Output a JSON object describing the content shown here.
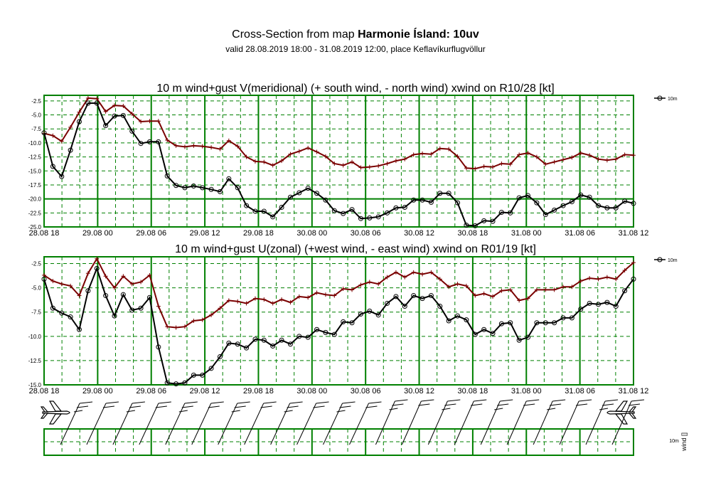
{
  "header": {
    "title_prefix": "Cross-Section from map ",
    "title_bold": "Harmonie Ísland: 10uv",
    "subtitle": "valid 28.08.2019 18:00 - 31.08.2019 12:00, place Keflavíkurflugvöllur"
  },
  "colors": {
    "wind": "#000000",
    "gust": "#7a0000",
    "grid": "#008000"
  },
  "legend": {
    "label": "10m"
  },
  "time_ticks": [
    "28.08 18",
    "29.08 00",
    "29.08 06",
    "29.08 12",
    "29.08 18",
    "30.08 00",
    "30.08 06",
    "30.08 12",
    "30.08 18",
    "31.08 00",
    "31.08 06",
    "31.08 12"
  ],
  "chart_data": [
    {
      "type": "line",
      "title": "10 m wind+gust V(meridional) (+ south wind, - north wind) xwind on R10/28 [kt]",
      "ylim": [
        -25,
        -1.5
      ],
      "yticks": [
        -2.5,
        -5.0,
        -7.5,
        -10.0,
        -12.5,
        -15.0,
        -17.5,
        -20.0,
        -22.5,
        -25.0
      ],
      "ytick_labels": [
        "-2.5",
        "-5.0",
        "-7.5",
        "-10.0",
        "-12.5",
        "-15.0",
        "-17.5",
        "-20.0",
        "-22.5",
        "-25.0"
      ],
      "series": [
        {
          "name": "10m",
          "values": [
            -8.2,
            -14.2,
            -16.0,
            -11.3,
            -6.2,
            -2.9,
            -2.9,
            -6.9,
            -5.2,
            -5.1,
            -7.9,
            -10.1,
            -9.8,
            -9.8,
            -15.9,
            -17.6,
            -18.0,
            -17.7,
            -18.0,
            -18.3,
            -18.7,
            -16.4,
            -18.0,
            -21.2,
            -22.2,
            -22.2,
            -23.2,
            -21.5,
            -19.7,
            -18.9,
            -18.1,
            -19.0,
            -20.2,
            -22.1,
            -22.6,
            -21.9,
            -23.5,
            -23.4,
            -23.2,
            -22.5,
            -21.6,
            -21.5,
            -20.2,
            -20.2,
            -20.6,
            -19.0,
            -19.0,
            -20.7,
            -24.7,
            -24.8,
            -23.9,
            -24.0,
            -22.4,
            -22.5,
            -19.8,
            -19.4,
            -20.7,
            -22.8,
            -22.0,
            -21.2,
            -20.5,
            -19.3,
            -19.7,
            -21.2,
            -21.6,
            -21.6,
            -20.4,
            -20.8
          ]
        },
        {
          "name": "gust",
          "values": [
            -8.3,
            -8.7,
            -9.7,
            -7.2,
            -4.5,
            -2.0,
            -2.1,
            -4.4,
            -3.3,
            -3.4,
            -4.8,
            -6.2,
            -6.1,
            -6.1,
            -9.5,
            -10.5,
            -10.7,
            -10.5,
            -10.6,
            -10.8,
            -11.1,
            -9.6,
            -10.6,
            -12.5,
            -13.3,
            -13.4,
            -14.0,
            -13.2,
            -12.0,
            -11.5,
            -10.9,
            -11.6,
            -12.4,
            -13.7,
            -14.0,
            -13.4,
            -14.4,
            -14.3,
            -14.1,
            -13.7,
            -13.2,
            -12.9,
            -12.1,
            -11.9,
            -12.0,
            -11.0,
            -11.1,
            -12.4,
            -14.5,
            -14.6,
            -14.2,
            -14.3,
            -13.7,
            -13.8,
            -12.1,
            -11.8,
            -12.5,
            -13.8,
            -13.4,
            -13.0,
            -12.6,
            -11.8,
            -12.2,
            -12.9,
            -13.1,
            -12.9,
            -12.1,
            -12.2
          ]
        }
      ]
    },
    {
      "type": "line",
      "title": "10 m wind+gust U(zonal) (+west wind, - east wind) xwind on R01/19 [kt]",
      "ylim": [
        -15,
        -1.8
      ],
      "yticks": [
        -2.5,
        -5.0,
        -7.5,
        -10.0,
        -12.5,
        -15.0
      ],
      "ytick_labels": [
        "-2.5",
        "-5.0",
        "-7.5",
        "-10.0",
        "-12.5",
        "-15.0"
      ],
      "series": [
        {
          "name": "10m",
          "values": [
            -4.1,
            -7.1,
            -7.6,
            -8.0,
            -9.3,
            -5.3,
            -3.0,
            -5.8,
            -7.9,
            -5.7,
            -7.3,
            -7.1,
            -6.0,
            -11.1,
            -14.8,
            -14.9,
            -14.8,
            -14.0,
            -14.0,
            -13.3,
            -12.1,
            -10.7,
            -10.8,
            -11.2,
            -10.3,
            -10.4,
            -11.0,
            -10.4,
            -10.8,
            -10.0,
            -10.1,
            -9.3,
            -9.6,
            -9.8,
            -8.5,
            -8.6,
            -7.7,
            -7.4,
            -7.8,
            -6.6,
            -5.9,
            -6.9,
            -5.8,
            -6.1,
            -5.8,
            -6.9,
            -8.4,
            -7.9,
            -8.3,
            -9.8,
            -9.3,
            -9.7,
            -8.7,
            -8.6,
            -10.4,
            -10.1,
            -8.6,
            -8.6,
            -8.6,
            -8.1,
            -8.1,
            -7.2,
            -6.6,
            -6.7,
            -6.5,
            -6.9,
            -5.3,
            -4.1
          ]
        },
        {
          "name": "gust",
          "values": [
            -3.7,
            -4.3,
            -4.6,
            -4.8,
            -5.8,
            -3.5,
            -2.0,
            -3.8,
            -5.0,
            -3.8,
            -4.6,
            -4.4,
            -3.7,
            -6.9,
            -9.0,
            -9.1,
            -9.0,
            -8.4,
            -8.3,
            -7.8,
            -7.1,
            -6.3,
            -6.4,
            -6.6,
            -6.1,
            -6.2,
            -6.6,
            -6.2,
            -6.5,
            -5.9,
            -6.0,
            -5.5,
            -5.7,
            -5.8,
            -5.1,
            -5.2,
            -4.7,
            -4.4,
            -4.6,
            -3.9,
            -3.4,
            -3.9,
            -3.4,
            -3.6,
            -3.4,
            -4.1,
            -4.9,
            -4.6,
            -4.8,
            -5.8,
            -5.6,
            -5.9,
            -5.3,
            -5.2,
            -6.3,
            -6.1,
            -5.2,
            -5.2,
            -5.2,
            -4.9,
            -4.9,
            -4.3,
            -4.0,
            -4.1,
            -3.9,
            -4.1,
            -3.2,
            -2.4
          ]
        }
      ]
    }
  ],
  "barbs": {
    "label_level": "10m",
    "label_axis": "wind []"
  }
}
